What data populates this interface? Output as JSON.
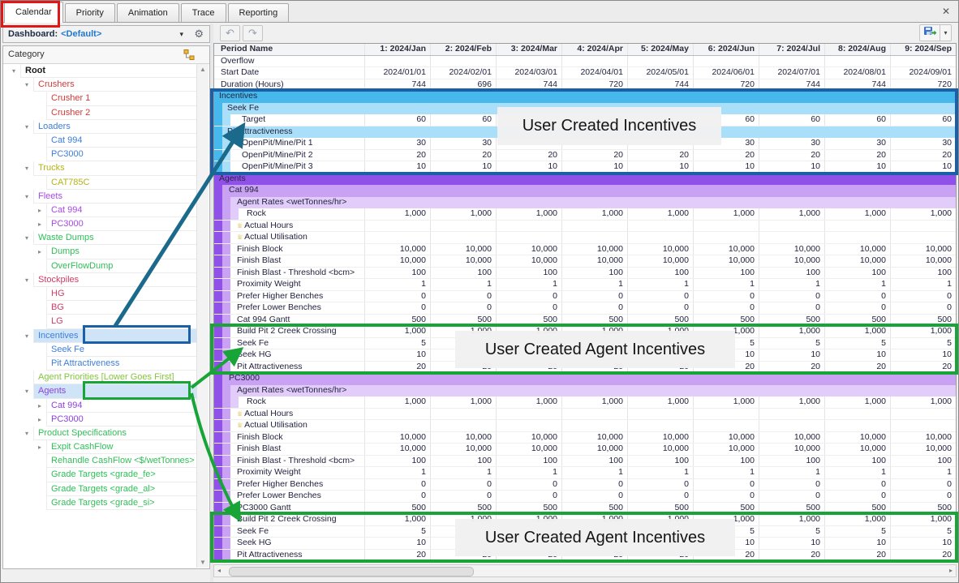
{
  "tabs": [
    {
      "label": "Calendar",
      "active": true,
      "highlighted": true
    },
    {
      "label": "Priority",
      "active": false
    },
    {
      "label": "Animation",
      "active": false
    },
    {
      "label": "Trace",
      "active": false
    },
    {
      "label": "Reporting",
      "active": false
    }
  ],
  "icons": {
    "close": "✕",
    "gear": "⚙",
    "dropdown": "▾",
    "undo": "↶",
    "redo": "↷",
    "expand_down": "▾",
    "expand_right": "▸",
    "scroll_up": "▲",
    "scroll_down": "▼",
    "scroll_left": "◂",
    "scroll_right": "▸",
    "calculated_field": "♕"
  },
  "dashboard": {
    "label": "Dashboard:",
    "value": "<Default>"
  },
  "category_panel": {
    "title": "Category"
  },
  "tree": {
    "items": [
      {
        "label": "Root",
        "color": "#1a1a1a",
        "bold": true,
        "level": 0,
        "exp": "down",
        "selected": false
      },
      {
        "label": "Crushers",
        "color": "#d23b3b",
        "level": 1,
        "exp": "down",
        "selected": false
      },
      {
        "label": "Crusher 1",
        "color": "#d23b3b",
        "level": 2,
        "exp": "none",
        "selected": false
      },
      {
        "label": "Crusher 2",
        "color": "#d23b3b",
        "level": 2,
        "exp": "none",
        "selected": false
      },
      {
        "label": "Loaders",
        "color": "#3d7edb",
        "level": 1,
        "exp": "down",
        "selected": false
      },
      {
        "label": "Cat 994",
        "color": "#3d7edb",
        "level": 2,
        "exp": "none",
        "selected": false
      },
      {
        "label": "PC3000",
        "color": "#3d7edb",
        "level": 2,
        "exp": "none",
        "selected": false
      },
      {
        "label": "Trucks",
        "color": "#b3b317",
        "level": 1,
        "exp": "down",
        "selected": false
      },
      {
        "label": "CAT785C",
        "color": "#b3b317",
        "level": 2,
        "exp": "none",
        "selected": false
      },
      {
        "label": "Fleets",
        "color": "#a948e8",
        "level": 1,
        "exp": "down",
        "selected": false
      },
      {
        "label": "Cat 994",
        "color": "#a948e8",
        "level": 2,
        "exp": "right",
        "selected": false
      },
      {
        "label": "PC3000",
        "color": "#a948e8",
        "level": 2,
        "exp": "right",
        "selected": false
      },
      {
        "label": "Waste Dumps",
        "color": "#2fbf57",
        "level": 1,
        "exp": "down",
        "selected": false
      },
      {
        "label": "Dumps",
        "color": "#2fbf57",
        "level": 2,
        "exp": "right",
        "selected": false
      },
      {
        "label": "OverFlowDump",
        "color": "#2fbf57",
        "level": 2,
        "exp": "none",
        "selected": false
      },
      {
        "label": "Stockpiles",
        "color": "#d23b68",
        "level": 1,
        "exp": "down",
        "selected": false
      },
      {
        "label": "HG",
        "color": "#d23b68",
        "level": 2,
        "exp": "none",
        "selected": false
      },
      {
        "label": "BG",
        "color": "#d23b68",
        "level": 2,
        "exp": "none",
        "selected": false
      },
      {
        "label": "LG",
        "color": "#d23b68",
        "level": 2,
        "exp": "none",
        "selected": false
      },
      {
        "label": "Incentives",
        "color": "#3d7edb",
        "level": 1,
        "exp": "down",
        "selected": true
      },
      {
        "label": "Seek Fe",
        "color": "#3d7edb",
        "level": 2,
        "exp": "none",
        "selected": false
      },
      {
        "label": "Pit Attractiveness",
        "color": "#3d7edb",
        "level": 2,
        "exp": "none",
        "selected": false
      },
      {
        "label": "Agent Priorities [Lower Goes First]",
        "color": "#85c440",
        "level": 1,
        "exp": "none",
        "selected": false
      },
      {
        "label": "Agents",
        "color": "#8f3fe0",
        "level": 1,
        "exp": "down",
        "selected": true
      },
      {
        "label": "Cat 994",
        "color": "#8f3fe0",
        "level": 2,
        "exp": "right",
        "selected": false
      },
      {
        "label": "PC3000",
        "color": "#8f3fe0",
        "level": 2,
        "exp": "right",
        "selected": false
      },
      {
        "label": "Product Specifications",
        "color": "#2fbf57",
        "level": 1,
        "exp": "down",
        "selected": false
      },
      {
        "label": "Expit CashFlow",
        "color": "#2fbf57",
        "level": 2,
        "exp": "right",
        "selected": false
      },
      {
        "label": "Rehandle CashFlow <$/wetTonnes>",
        "color": "#2fbf57",
        "level": 2,
        "exp": "none",
        "selected": false
      },
      {
        "label": "Grade Targets <grade_fe>",
        "color": "#2fbf57",
        "level": 2,
        "exp": "none",
        "selected": false
      },
      {
        "label": "Grade Targets <grade_al>",
        "color": "#2fbf57",
        "level": 2,
        "exp": "none",
        "selected": false
      },
      {
        "label": "Grade Targets <grade_si>",
        "color": "#2fbf57",
        "level": 2,
        "exp": "none",
        "selected": false
      }
    ]
  },
  "colors": {
    "incentive_header": "#47b8ec",
    "incentive_sub": "#a9dff8",
    "agents_header": "#9051e9",
    "agents_sub": "#c9a2f4",
    "agents_sub2": "#e2cdfa",
    "annotation_blue": "#1b5fa6",
    "annotation_green": "#18a437",
    "annotation_red": "#e11616",
    "arrow_teal": "#1b6a8c"
  },
  "table": {
    "label_column_header": "Period Name",
    "columns": [
      "1: 2024/Jan",
      "2: 2024/Feb",
      "3: 2024/Mar",
      "4: 2024/Apr",
      "5: 2024/May",
      "6: 2024/Jun",
      "7: 2024/Jul",
      "8: 2024/Aug",
      "9: 2024/Sep"
    ],
    "rows": [
      {
        "label": "Overflow",
        "type": "plain",
        "values": [
          "",
          "",
          "",
          "",
          "",
          "",
          "",
          "",
          ""
        ]
      },
      {
        "label": "Start Date",
        "type": "plain",
        "values": [
          "2024/01/01",
          "2024/02/01",
          "2024/03/01",
          "2024/04/01",
          "2024/05/01",
          "2024/06/01",
          "2024/07/01",
          "2024/08/01",
          "2024/09/01"
        ]
      },
      {
        "label": "Duration (Hours)",
        "type": "plain",
        "values": [
          "744",
          "696",
          "744",
          "720",
          "744",
          "720",
          "744",
          "744",
          "720"
        ]
      },
      {
        "label": "Incentives",
        "type": "secblue",
        "values": []
      },
      {
        "label": "Seek Fe",
        "type": "subblue",
        "values": []
      },
      {
        "label": "Target",
        "type": "datab2",
        "values": [
          "60",
          "60",
          "",
          "",
          "",
          "60",
          "60",
          "60",
          "60"
        ]
      },
      {
        "label": "Pit Attractiveness",
        "type": "subblue",
        "values": []
      },
      {
        "label": "OpenPit/Mine/Pit 1",
        "type": "datab2",
        "values": [
          "30",
          "30",
          "",
          "",
          "",
          "30",
          "30",
          "30",
          "30"
        ]
      },
      {
        "label": "OpenPit/Mine/Pit 2",
        "type": "datab2",
        "values": [
          "20",
          "20",
          "20",
          "20",
          "20",
          "20",
          "20",
          "20",
          "20"
        ]
      },
      {
        "label": "OpenPit/Mine/Pit 3",
        "type": "datab2",
        "values": [
          "10",
          "10",
          "10",
          "10",
          "10",
          "10",
          "10",
          "10",
          "10"
        ]
      },
      {
        "label": "Agents",
        "type": "secpurple",
        "values": []
      },
      {
        "label": "Cat 994",
        "type": "subpurple",
        "values": []
      },
      {
        "label": "Agent Rates <wetTonnes/hr>",
        "type": "sub2purple",
        "values": []
      },
      {
        "label": "Rock",
        "type": "datap3",
        "values": [
          "1,000",
          "1,000",
          "1,000",
          "1,000",
          "1,000",
          "1,000",
          "1,000",
          "1,000",
          "1,000"
        ]
      },
      {
        "label": "Actual Hours",
        "type": "datap2",
        "icon": true,
        "values": [
          "",
          "",
          "",
          "",
          "",
          "",
          "",
          "",
          ""
        ]
      },
      {
        "label": "Actual Utilisation",
        "type": "datap2",
        "icon": true,
        "values": [
          "",
          "",
          "",
          "",
          "",
          "",
          "",
          "",
          ""
        ]
      },
      {
        "label": "Finish Block",
        "type": "datap2",
        "values": [
          "10,000",
          "10,000",
          "10,000",
          "10,000",
          "10,000",
          "10,000",
          "10,000",
          "10,000",
          "10,000"
        ]
      },
      {
        "label": "Finish Blast",
        "type": "datap2",
        "values": [
          "10,000",
          "10,000",
          "10,000",
          "10,000",
          "10,000",
          "10,000",
          "10,000",
          "10,000",
          "10,000"
        ]
      },
      {
        "label": "Finish Blast - Threshold <bcm>",
        "type": "datap2",
        "values": [
          "100",
          "100",
          "100",
          "100",
          "100",
          "100",
          "100",
          "100",
          "100"
        ]
      },
      {
        "label": "Proximity Weight",
        "type": "datap2",
        "values": [
          "1",
          "1",
          "1",
          "1",
          "1",
          "1",
          "1",
          "1",
          "1"
        ]
      },
      {
        "label": "Prefer Higher Benches",
        "type": "datap2",
        "values": [
          "0",
          "0",
          "0",
          "0",
          "0",
          "0",
          "0",
          "0",
          "0"
        ]
      },
      {
        "label": "Prefer Lower Benches",
        "type": "datap2",
        "values": [
          "0",
          "0",
          "0",
          "0",
          "0",
          "0",
          "0",
          "0",
          "0"
        ]
      },
      {
        "label": "Cat 994 Gantt",
        "type": "datap2",
        "values": [
          "500",
          "500",
          "500",
          "500",
          "500",
          "500",
          "500",
          "500",
          "500"
        ]
      },
      {
        "label": "Build Pit 2 Creek Crossing",
        "type": "datap2",
        "values": [
          "1,000",
          "1,000",
          "1,000",
          "1,000",
          "1,000",
          "1,000",
          "1,000",
          "1,000",
          "1,000"
        ]
      },
      {
        "label": "Seek Fe",
        "type": "datap2",
        "values": [
          "5",
          "",
          "",
          "",
          "",
          "5",
          "5",
          "5",
          "5"
        ]
      },
      {
        "label": "Seek HG",
        "type": "datap2",
        "values": [
          "10",
          "",
          "",
          "",
          "",
          "10",
          "10",
          "10",
          "10"
        ]
      },
      {
        "label": "Pit Attractiveness",
        "type": "datap2",
        "values": [
          "20",
          "20",
          "20",
          "20",
          "20",
          "20",
          "20",
          "20",
          "20"
        ]
      },
      {
        "label": "PC3000",
        "type": "subpurple",
        "values": []
      },
      {
        "label": "Agent Rates <wetTonnes/hr>",
        "type": "sub2purple",
        "values": []
      },
      {
        "label": "Rock",
        "type": "datap3",
        "values": [
          "1,000",
          "1,000",
          "1,000",
          "1,000",
          "1,000",
          "1,000",
          "1,000",
          "1,000",
          "1,000"
        ]
      },
      {
        "label": "Actual Hours",
        "type": "datap2",
        "icon": true,
        "values": [
          "",
          "",
          "",
          "",
          "",
          "",
          "",
          "",
          ""
        ]
      },
      {
        "label": "Actual Utilisation",
        "type": "datap2",
        "icon": true,
        "values": [
          "",
          "",
          "",
          "",
          "",
          "",
          "",
          "",
          ""
        ]
      },
      {
        "label": "Finish Block",
        "type": "datap2",
        "values": [
          "10,000",
          "10,000",
          "10,000",
          "10,000",
          "10,000",
          "10,000",
          "10,000",
          "10,000",
          "10,000"
        ]
      },
      {
        "label": "Finish Blast",
        "type": "datap2",
        "values": [
          "10,000",
          "10,000",
          "10,000",
          "10,000",
          "10,000",
          "10,000",
          "10,000",
          "10,000",
          "10,000"
        ]
      },
      {
        "label": "Finish Blast - Threshold <bcm>",
        "type": "datap2",
        "values": [
          "100",
          "100",
          "100",
          "100",
          "100",
          "100",
          "100",
          "100",
          "100"
        ]
      },
      {
        "label": "Proximity Weight",
        "type": "datap2",
        "values": [
          "1",
          "1",
          "1",
          "1",
          "1",
          "1",
          "1",
          "1",
          "1"
        ]
      },
      {
        "label": "Prefer Higher Benches",
        "type": "datap2",
        "values": [
          "0",
          "0",
          "0",
          "0",
          "0",
          "0",
          "0",
          "0",
          "0"
        ]
      },
      {
        "label": "Prefer Lower Benches",
        "type": "datap2",
        "values": [
          "0",
          "0",
          "0",
          "0",
          "0",
          "0",
          "0",
          "0",
          "0"
        ]
      },
      {
        "label": "PC3000 Gantt",
        "type": "datap2",
        "values": [
          "500",
          "500",
          "500",
          "500",
          "500",
          "500",
          "500",
          "500",
          "500"
        ]
      },
      {
        "label": "Build Pit 2 Creek Crossing",
        "type": "datap2",
        "values": [
          "1,000",
          "1,000",
          "1,000",
          "1,000",
          "1,000",
          "1,000",
          "1,000",
          "1,000",
          "1,000"
        ]
      },
      {
        "label": "Seek Fe",
        "type": "datap2",
        "values": [
          "5",
          "",
          "",
          "",
          "",
          "5",
          "5",
          "5",
          "5"
        ]
      },
      {
        "label": "Seek HG",
        "type": "datap2",
        "values": [
          "10",
          "",
          "",
          "",
          "",
          "10",
          "10",
          "10",
          "10"
        ]
      },
      {
        "label": "Pit Attractiveness",
        "type": "datap2",
        "values": [
          "20",
          "20",
          "20",
          "20",
          "20",
          "20",
          "20",
          "20",
          "20"
        ]
      }
    ]
  },
  "annotations": {
    "incentives_label": "User Created Incentives",
    "agent_incentives_label_1": "User Created Agent Incentives",
    "agent_incentives_label_2": "User Created Agent Incentives"
  }
}
